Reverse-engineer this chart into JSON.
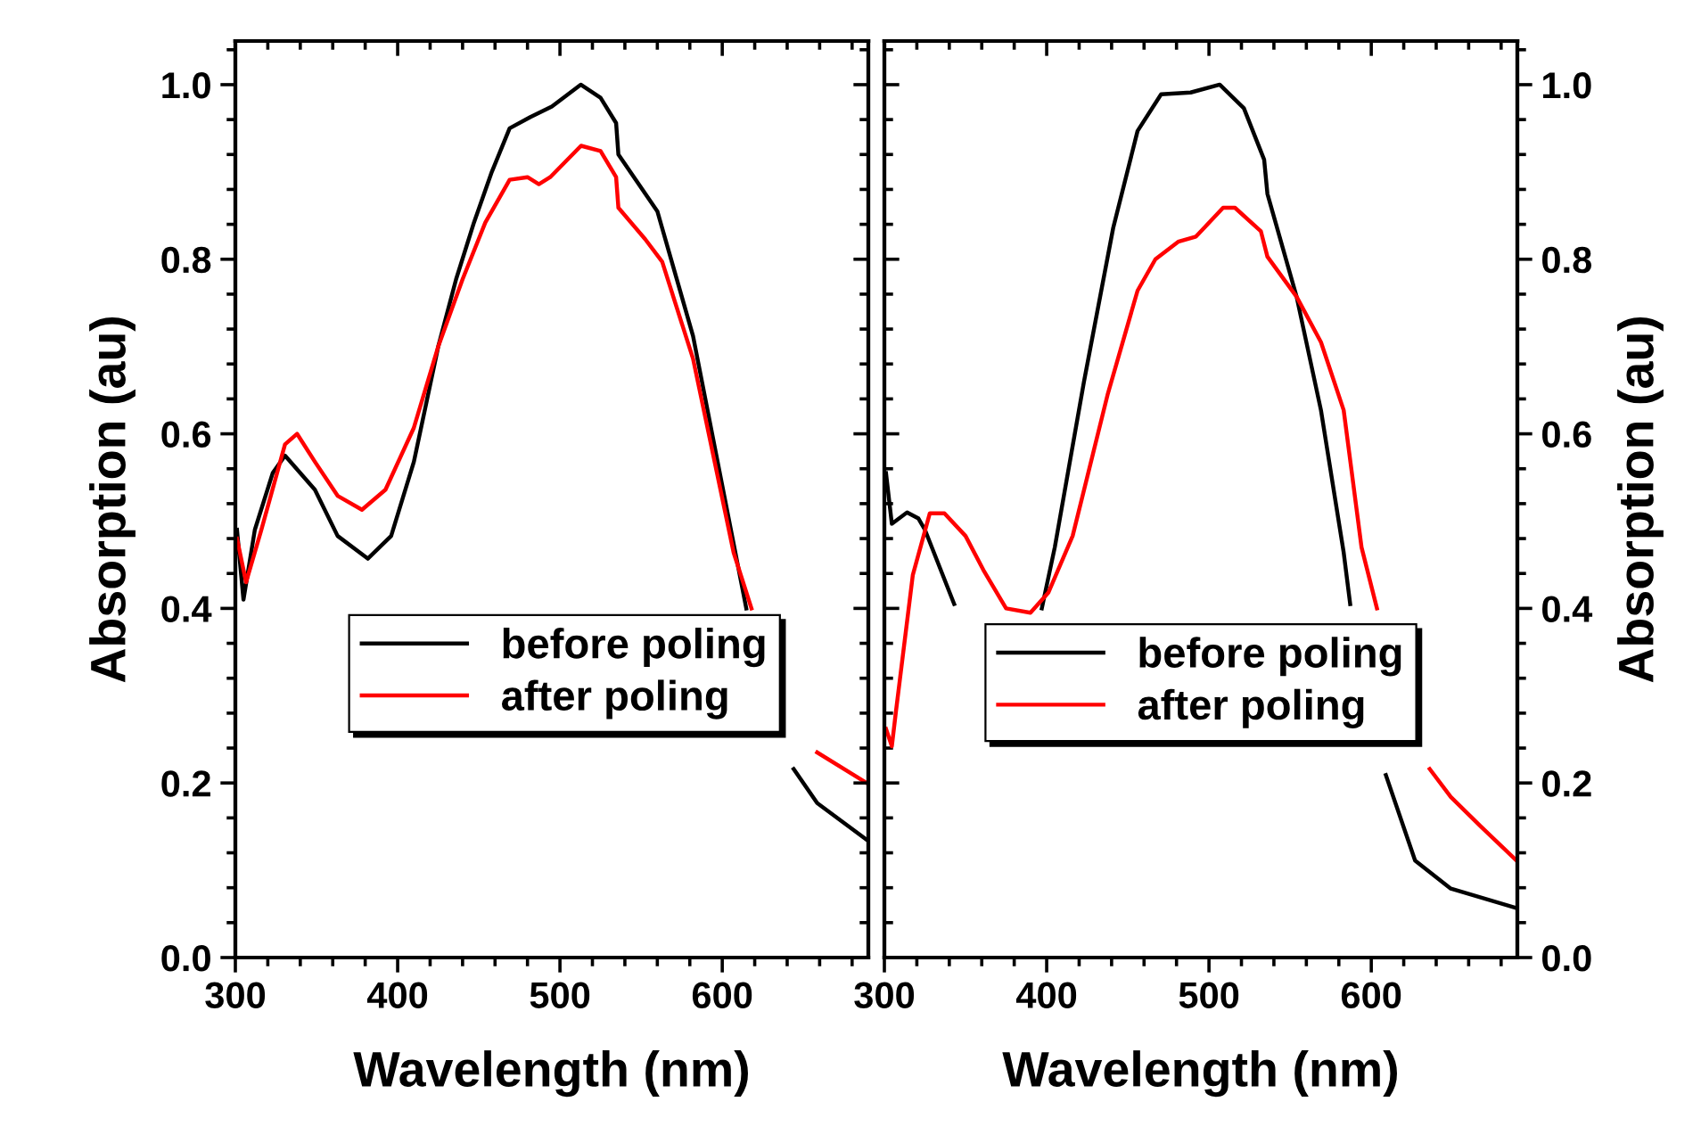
{
  "chart_data": [
    {
      "type": "line",
      "xlabel": "Wavelength (nm)",
      "ylabel": "Absorption (au)",
      "xlim": [
        300,
        690
      ],
      "xticks": [
        300,
        400,
        500,
        600
      ],
      "ylim": [
        0,
        1.05
      ],
      "yticks": [
        {
          "value": 0,
          "label": "0.0"
        },
        {
          "value": 0.2,
          "label": "0.2"
        },
        {
          "value": 0.4,
          "label": "0.4"
        },
        {
          "value": 0.6,
          "label": "0.6"
        },
        {
          "value": 0.8,
          "label": "0.8"
        },
        {
          "value": 1.0,
          "label": "1.0"
        }
      ],
      "legend": "center",
      "grid": false,
      "series": [
        {
          "name": "before poling",
          "color": "#000000",
          "x": [
            301,
            305,
            312,
            323,
            330.6,
            349,
            363,
            381.6,
            396,
            410,
            425,
            436,
            447,
            458,
            469,
            481.8,
            495,
            512.8,
            525,
            534.6,
            536,
            560,
            582,
            614.8,
            630,
            644,
            658.5,
            689
          ],
          "values": [
            0.49,
            0.41,
            0.49,
            0.555,
            0.575,
            0.536,
            0.483,
            0.457,
            0.483,
            0.568,
            0.7,
            0.777,
            0.842,
            0.9,
            0.95,
            0.963,
            0.975,
            1.0,
            0.985,
            0.956,
            0.92,
            0.855,
            0.712,
            0.4,
            null,
            0.216,
            0.177,
            0.135
          ]
        },
        {
          "name": "after poling",
          "color": "#ff0000",
          "x": [
            301,
            306.6,
            316,
            330.6,
            338,
            349,
            363,
            378,
            392.5,
            410,
            425,
            440,
            454,
            469,
            480,
            487,
            494,
            513,
            525,
            534.6,
            536,
            552.5,
            563,
            582,
            607,
            618,
            640,
            658.5,
            689
          ],
          "values": [
            0.48,
            0.43,
            0.49,
            0.588,
            0.6,
            0.568,
            0.529,
            0.513,
            0.536,
            0.607,
            0.7,
            0.777,
            0.842,
            0.891,
            0.894,
            0.886,
            0.894,
            0.93,
            0.924,
            0.894,
            0.859,
            0.823,
            0.797,
            0.686,
            0.464,
            0.4,
            null,
            0.235,
            0.2
          ]
        }
      ]
    },
    {
      "type": "line",
      "xlabel": "Wavelength (nm)",
      "y2label": "Absorption (au)",
      "xlim": [
        300,
        690
      ],
      "xticks": [
        300,
        400,
        500,
        600
      ],
      "y2lim": [
        0,
        1.05
      ],
      "y2ticks": [
        {
          "value": 0,
          "label": "0.0"
        },
        {
          "value": 0.2,
          "label": "0.2"
        },
        {
          "value": 0.4,
          "label": "0.4"
        },
        {
          "value": 0.6,
          "label": "0.6"
        },
        {
          "value": 0.8,
          "label": "0.8"
        },
        {
          "value": 1.0,
          "label": "1.0"
        }
      ],
      "legend": "center",
      "grid": false,
      "series": [
        {
          "name": "before poling",
          "color": "#000000",
          "axis": "y2",
          "x": [
            301,
            304.6,
            314,
            321,
            325,
            343,
            370,
            397,
            405,
            423,
            441,
            456,
            470.5,
            488.7,
            506.6,
            521.5,
            534,
            536,
            554,
            569,
            583,
            587,
            598,
            609,
            627,
            649,
            689
          ],
          "values": [
            0.555,
            0.497,
            0.51,
            0.503,
            0.49,
            0.405,
            null,
            0.4,
            0.47,
            0.66,
            0.836,
            0.947,
            0.989,
            0.991,
            1.0,
            0.973,
            0.914,
            0.875,
            0.757,
            0.627,
            0.464,
            0.405,
            null,
            0.209,
            0.111,
            0.079,
            0.057
          ]
        },
        {
          "name": "after poling",
          "color": "#ff0000",
          "axis": "y2",
          "x": [
            301,
            304.6,
            307,
            317.5,
            328,
            337,
            350,
            361,
            375,
            390,
            401,
            416,
            437.7,
            456,
            467,
            481,
            492,
            508.7,
            516,
            532,
            536,
            554,
            569,
            583,
            594,
            603.5,
            620,
            636,
            649,
            667,
            689
          ],
          "values": [
            0.262,
            0.242,
            0.28,
            0.438,
            0.509,
            0.509,
            0.483,
            0.444,
            0.4,
            0.395,
            0.418,
            0.483,
            0.646,
            0.764,
            0.8,
            0.82,
            0.826,
            0.859,
            0.859,
            0.832,
            0.803,
            0.757,
            0.705,
            0.627,
            0.47,
            0.4,
            null,
            0.216,
            0.184,
            0.151,
            0.112
          ]
        }
      ]
    }
  ]
}
